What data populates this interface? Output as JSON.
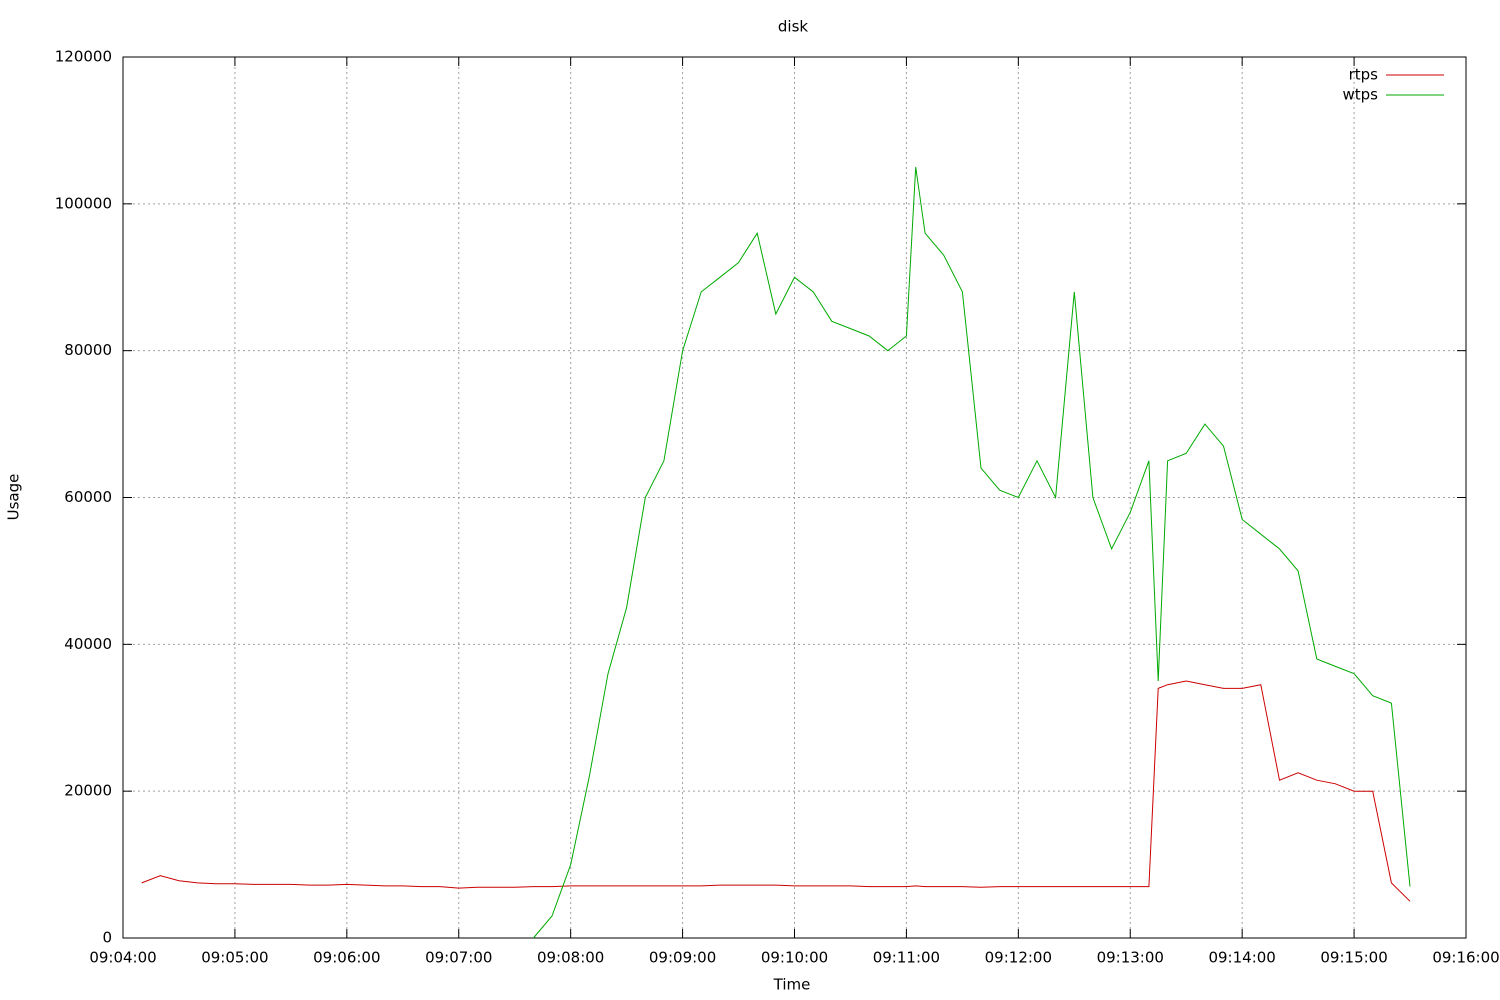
{
  "chart_data": {
    "type": "line",
    "title": "disk",
    "x_label": "Time",
    "y_label": "Usage",
    "x": [
      "09:04:10",
      "09:04:20",
      "09:04:30",
      "09:04:40",
      "09:04:50",
      "09:05:00",
      "09:05:10",
      "09:05:20",
      "09:05:30",
      "09:05:40",
      "09:05:50",
      "09:06:00",
      "09:06:10",
      "09:06:20",
      "09:06:30",
      "09:06:40",
      "09:06:50",
      "09:07:00",
      "09:07:10",
      "09:07:20",
      "09:07:30",
      "09:07:40",
      "09:07:50",
      "09:08:00",
      "09:08:10",
      "09:08:20",
      "09:08:30",
      "09:08:40",
      "09:08:50",
      "09:09:00",
      "09:09:10",
      "09:09:20",
      "09:09:30",
      "09:09:40",
      "09:09:50",
      "09:10:00",
      "09:10:10",
      "09:10:20",
      "09:10:30",
      "09:10:40",
      "09:10:50",
      "09:11:00",
      "09:11:05",
      "09:11:10",
      "09:11:20",
      "09:11:30",
      "09:11:40",
      "09:11:50",
      "09:12:00",
      "09:12:10",
      "09:12:20",
      "09:12:30",
      "09:12:40",
      "09:12:50",
      "09:13:00",
      "09:13:10",
      "09:13:15",
      "09:13:20",
      "09:13:30",
      "09:13:40",
      "09:13:50",
      "09:14:00",
      "09:14:10",
      "09:14:20",
      "09:14:30",
      "09:14:40",
      "09:14:50",
      "09:15:00",
      "09:15:10",
      "09:15:20",
      "09:15:30"
    ],
    "series": [
      {
        "name": "rtps",
        "color": "#cc0000",
        "values": [
          7500,
          8500,
          7800,
          7500,
          7400,
          7400,
          7300,
          7300,
          7300,
          7200,
          7200,
          7300,
          7200,
          7100,
          7100,
          7000,
          7000,
          6800,
          6900,
          6900,
          6900,
          7000,
          7000,
          7100,
          7100,
          7100,
          7100,
          7100,
          7100,
          7100,
          7100,
          7200,
          7200,
          7200,
          7200,
          7100,
          7100,
          7100,
          7100,
          7000,
          7000,
          7000,
          7100,
          7000,
          7000,
          7000,
          6900,
          7000,
          7000,
          7000,
          7000,
          7000,
          7000,
          7000,
          7000,
          7000,
          34000,
          34500,
          35000,
          34500,
          34000,
          34000,
          34500,
          21500,
          22500,
          21500,
          21000,
          20000,
          20000,
          7500,
          5000
        ]
      },
      {
        "name": "wtps",
        "color": "#00aa00",
        "values": [
          null,
          null,
          null,
          null,
          null,
          null,
          null,
          null,
          null,
          null,
          null,
          null,
          null,
          null,
          null,
          null,
          null,
          null,
          null,
          null,
          null,
          0,
          3000,
          10000,
          22000,
          36000,
          45000,
          60000,
          65000,
          80000,
          88000,
          90000,
          92000,
          96000,
          85000,
          90000,
          88000,
          84000,
          83000,
          82000,
          80000,
          82000,
          105000,
          96000,
          93000,
          88000,
          64000,
          61000,
          60000,
          65000,
          60000,
          88000,
          60000,
          53000,
          58000,
          65000,
          35000,
          65000,
          66000,
          70000,
          67000,
          57000,
          55000,
          53000,
          50000,
          38000,
          37000,
          36000,
          33000,
          32000,
          7000
        ]
      }
    ],
    "xlim": [
      "09:04:00",
      "09:16:00"
    ],
    "xticks": [
      "09:04:00",
      "09:05:00",
      "09:06:00",
      "09:07:00",
      "09:08:00",
      "09:09:00",
      "09:10:00",
      "09:11:00",
      "09:12:00",
      "09:13:00",
      "09:14:00",
      "09:15:00",
      "09:16:00"
    ],
    "ylim": [
      0,
      120000
    ],
    "yticks": [
      0,
      20000,
      40000,
      60000,
      80000,
      100000,
      120000
    ],
    "grid": true,
    "legend": "top-right"
  }
}
